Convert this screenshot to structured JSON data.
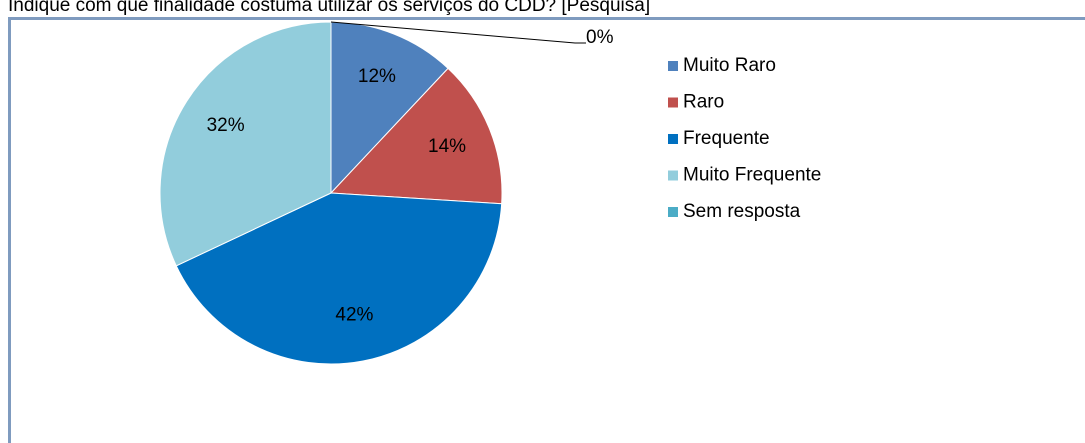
{
  "chart_data": {
    "type": "pie",
    "title": "Indique com que finalidade costuma utilizar os serviços do CDD? [Pesquisa]",
    "categories": [
      "Muito Raro",
      "Raro",
      "Frequente",
      "Muito Frequente",
      "Sem resposta"
    ],
    "values": [
      12,
      14,
      42,
      32,
      0
    ],
    "value_labels": [
      "12%",
      "14%",
      "42%",
      "32%",
      "0%"
    ],
    "colors": [
      "#4f81bd",
      "#c0504d",
      "#0070c0",
      "#92cddc",
      "#4bacc6"
    ],
    "legend": "right"
  }
}
